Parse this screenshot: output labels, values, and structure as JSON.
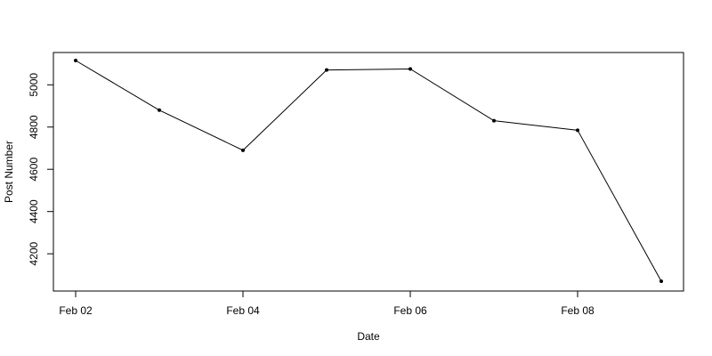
{
  "chart_data": {
    "type": "line",
    "xlabel": "Date",
    "ylabel": "Post Number",
    "x": [
      "Feb 02",
      "Feb 03",
      "Feb 04",
      "Feb 05",
      "Feb 06",
      "Feb 07",
      "Feb 08",
      "Feb 09"
    ],
    "values": [
      5115,
      4880,
      4690,
      5070,
      5075,
      4830,
      4785,
      4070
    ],
    "x_ticks": [
      "Feb 02",
      "Feb 04",
      "Feb 06",
      "Feb 08"
    ],
    "y_ticks": [
      4200,
      4400,
      4600,
      4800,
      5000
    ],
    "xlim": [
      "Feb 02",
      "Feb 09"
    ],
    "ylim": [
      4070,
      5115
    ],
    "grid": false,
    "legend": "none",
    "colors": {
      "line": "#000000",
      "points": "#000000",
      "axes": "#000000"
    }
  }
}
